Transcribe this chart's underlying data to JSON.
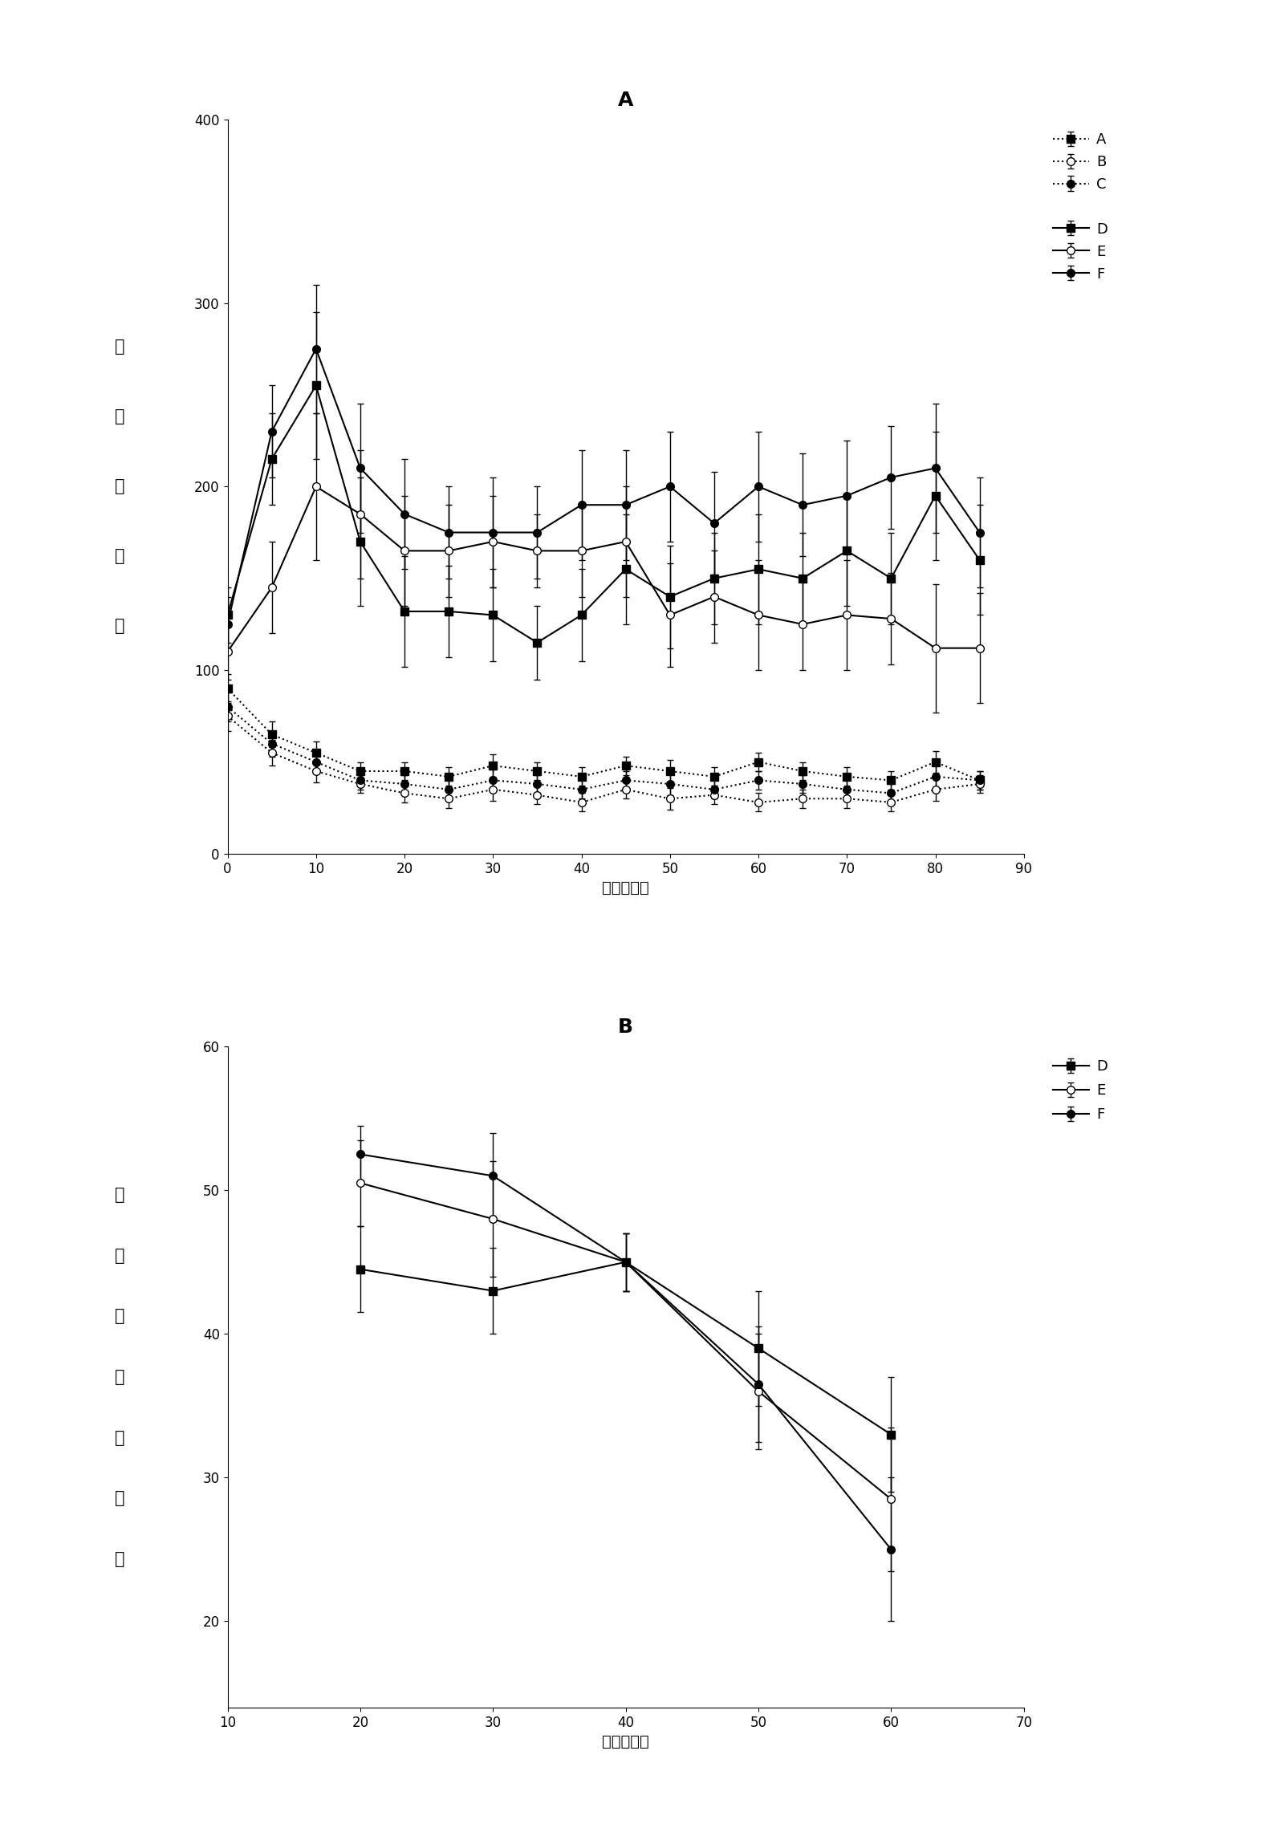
{
  "chart_A": {
    "title": "A",
    "xlabel": "时间（分）",
    "ylabel_chars": [
      "跨",
      "格",
      "跑",
      "动",
      "性"
    ],
    "xlim": [
      0,
      90
    ],
    "ylim": [
      0,
      400
    ],
    "xticks": [
      0,
      10,
      20,
      30,
      40,
      50,
      60,
      70,
      80,
      90
    ],
    "yticks": [
      0,
      100,
      200,
      300,
      400
    ],
    "series": {
      "A": {
        "x": [
          0,
          5,
          10,
          15,
          20,
          25,
          30,
          35,
          40,
          45,
          50,
          55,
          60,
          65,
          70,
          75,
          80,
          85
        ],
        "y": [
          90,
          65,
          55,
          45,
          45,
          42,
          48,
          45,
          42,
          48,
          45,
          42,
          50,
          45,
          42,
          40,
          50,
          40
        ],
        "yerr": [
          8,
          7,
          6,
          5,
          5,
          5,
          6,
          5,
          5,
          5,
          6,
          5,
          5,
          5,
          5,
          5,
          6,
          5
        ],
        "linestyle": "dotted",
        "marker": "s",
        "fillstyle": "full",
        "label": "A"
      },
      "B": {
        "x": [
          0,
          5,
          10,
          15,
          20,
          25,
          30,
          35,
          40,
          45,
          50,
          55,
          60,
          65,
          70,
          75,
          80,
          85
        ],
        "y": [
          75,
          55,
          45,
          38,
          33,
          30,
          35,
          32,
          28,
          35,
          30,
          32,
          28,
          30,
          30,
          28,
          35,
          38
        ],
        "yerr": [
          8,
          7,
          6,
          5,
          5,
          5,
          6,
          5,
          5,
          5,
          6,
          5,
          5,
          5,
          5,
          5,
          6,
          5
        ],
        "linestyle": "dotted",
        "marker": "o",
        "fillstyle": "none",
        "label": "B"
      },
      "C": {
        "x": [
          0,
          5,
          10,
          15,
          20,
          25,
          30,
          35,
          40,
          45,
          50,
          55,
          60,
          65,
          70,
          75,
          80,
          85
        ],
        "y": [
          80,
          60,
          50,
          40,
          38,
          35,
          40,
          38,
          35,
          40,
          38,
          35,
          40,
          38,
          35,
          33,
          42,
          40
        ],
        "yerr": [
          8,
          7,
          6,
          5,
          5,
          5,
          6,
          5,
          5,
          5,
          6,
          5,
          5,
          5,
          5,
          5,
          6,
          5
        ],
        "linestyle": "dotted",
        "marker": "o",
        "fillstyle": "full",
        "label": "C"
      },
      "D": {
        "x": [
          0,
          5,
          10,
          15,
          20,
          25,
          30,
          35,
          40,
          45,
          50,
          55,
          60,
          65,
          70,
          75,
          80,
          85
        ],
        "y": [
          130,
          215,
          255,
          170,
          132,
          132,
          130,
          115,
          130,
          155,
          140,
          150,
          155,
          150,
          165,
          150,
          195,
          160
        ],
        "yerr": [
          15,
          25,
          40,
          35,
          30,
          25,
          25,
          20,
          25,
          30,
          28,
          25,
          30,
          25,
          30,
          25,
          35,
          30
        ],
        "linestyle": "solid",
        "marker": "s",
        "fillstyle": "full",
        "label": "D"
      },
      "E": {
        "x": [
          0,
          5,
          10,
          15,
          20,
          25,
          30,
          35,
          40,
          45,
          50,
          55,
          60,
          65,
          70,
          75,
          80,
          85
        ],
        "y": [
          110,
          145,
          200,
          185,
          165,
          165,
          170,
          165,
          165,
          170,
          130,
          140,
          130,
          125,
          130,
          128,
          112,
          112
        ],
        "yerr": [
          15,
          25,
          40,
          35,
          30,
          25,
          25,
          20,
          25,
          30,
          28,
          25,
          30,
          25,
          30,
          25,
          35,
          30
        ],
        "linestyle": "solid",
        "marker": "o",
        "fillstyle": "none",
        "label": "E"
      },
      "F": {
        "x": [
          0,
          5,
          10,
          15,
          20,
          25,
          30,
          35,
          40,
          45,
          50,
          55,
          60,
          65,
          70,
          75,
          80,
          85
        ],
        "y": [
          125,
          230,
          275,
          210,
          185,
          175,
          175,
          175,
          190,
          190,
          200,
          180,
          200,
          190,
          195,
          205,
          210,
          175
        ],
        "yerr": [
          15,
          25,
          35,
          35,
          30,
          25,
          30,
          25,
          30,
          30,
          30,
          28,
          30,
          28,
          30,
          28,
          35,
          30
        ],
        "linestyle": "solid",
        "marker": "o",
        "fillstyle": "full",
        "label": "F"
      }
    }
  },
  "chart_B": {
    "title": "B",
    "xlabel": "时间（分）",
    "ylabel_chars": [
      "异",
      "常",
      "刻",
      "板",
      "性",
      "动",
      "作"
    ],
    "xlim": [
      10,
      70
    ],
    "ylim": [
      14,
      60
    ],
    "xticks": [
      10,
      20,
      30,
      40,
      50,
      60,
      70
    ],
    "yticks": [
      20,
      30,
      40,
      50,
      60
    ],
    "series": {
      "D": {
        "x": [
          20,
          30,
          40,
          50,
          60
        ],
        "y": [
          44.5,
          43,
          45,
          39,
          33
        ],
        "yerr": [
          3,
          3,
          2,
          4,
          4
        ],
        "linestyle": "solid",
        "marker": "s",
        "fillstyle": "full",
        "label": "D"
      },
      "E": {
        "x": [
          20,
          30,
          40,
          50,
          60
        ],
        "y": [
          50.5,
          48,
          45,
          36,
          28.5
        ],
        "yerr": [
          3,
          4,
          2,
          4,
          5
        ],
        "linestyle": "solid",
        "marker": "o",
        "fillstyle": "none",
        "label": "E"
      },
      "F": {
        "x": [
          20,
          30,
          40,
          50,
          60
        ],
        "y": [
          52.5,
          51,
          45,
          36.5,
          25
        ],
        "yerr": [
          2,
          3,
          2,
          4,
          5
        ],
        "linestyle": "solid",
        "marker": "o",
        "fillstyle": "full",
        "label": "F"
      }
    }
  },
  "background_color": "#ffffff",
  "font_size_title": 18,
  "font_size_label": 14,
  "font_size_tick": 12,
  "font_size_legend": 13,
  "font_size_ylabel": 15
}
